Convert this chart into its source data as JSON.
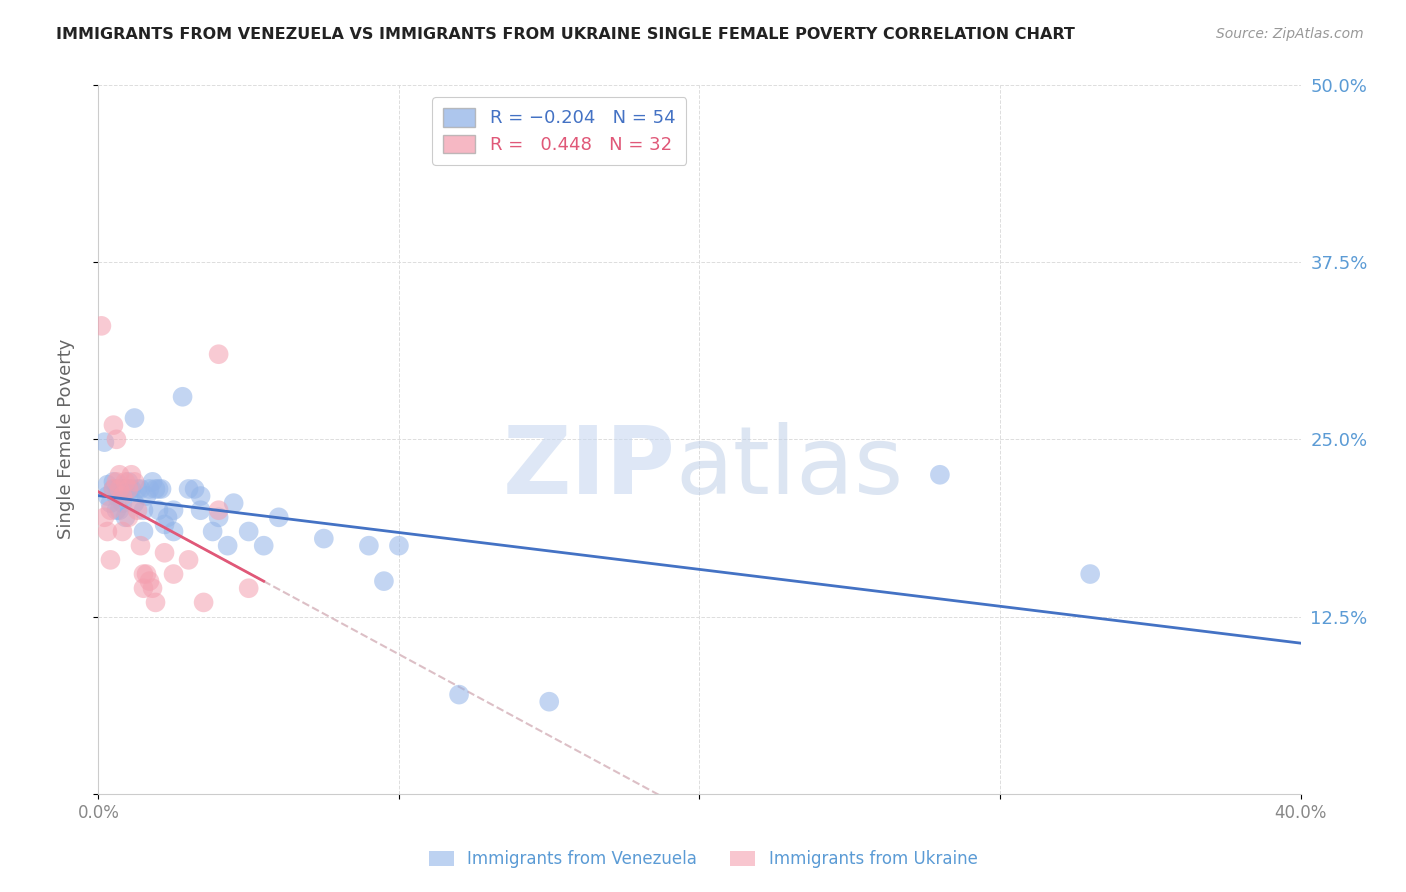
{
  "title": "IMMIGRANTS FROM VENEZUELA VS IMMIGRANTS FROM UKRAINE SINGLE FEMALE POVERTY CORRELATION CHART",
  "source": "Source: ZipAtlas.com",
  "ylabel": "Single Female Poverty",
  "xlim": [
    0.0,
    0.4
  ],
  "ylim": [
    0.0,
    0.5
  ],
  "venezuela_color": "#92b4e8",
  "ukraine_color": "#f4a0b0",
  "ven_line_color": "#4472c4",
  "ukr_line_color": "#e05878",
  "dash_color": "#d4b0b8",
  "watermark_zip_color": "#c8d8f0",
  "watermark_atlas_color": "#c0d0e8",
  "yticks": [
    0.0,
    0.125,
    0.25,
    0.375,
    0.5
  ],
  "ytick_labels": [
    "",
    "12.5%",
    "25.0%",
    "37.5%",
    "50.0%"
  ],
  "xtick_positions": [
    0.0,
    0.4
  ],
  "xtick_labels": [
    "0.0%",
    "40.0%"
  ],
  "venezuela_points": [
    [
      0.002,
      0.248
    ],
    [
      0.003,
      0.218
    ],
    [
      0.003,
      0.21
    ],
    [
      0.004,
      0.205
    ],
    [
      0.005,
      0.215
    ],
    [
      0.005,
      0.22
    ],
    [
      0.006,
      0.21
    ],
    [
      0.006,
      0.2
    ],
    [
      0.007,
      0.215
    ],
    [
      0.007,
      0.2
    ],
    [
      0.008,
      0.215
    ],
    [
      0.008,
      0.205
    ],
    [
      0.009,
      0.215
    ],
    [
      0.009,
      0.195
    ],
    [
      0.01,
      0.215
    ],
    [
      0.01,
      0.22
    ],
    [
      0.011,
      0.215
    ],
    [
      0.012,
      0.265
    ],
    [
      0.012,
      0.205
    ],
    [
      0.013,
      0.215
    ],
    [
      0.014,
      0.215
    ],
    [
      0.015,
      0.2
    ],
    [
      0.015,
      0.185
    ],
    [
      0.016,
      0.21
    ],
    [
      0.017,
      0.215
    ],
    [
      0.018,
      0.22
    ],
    [
      0.019,
      0.215
    ],
    [
      0.02,
      0.2
    ],
    [
      0.02,
      0.215
    ],
    [
      0.021,
      0.215
    ],
    [
      0.022,
      0.19
    ],
    [
      0.023,
      0.195
    ],
    [
      0.025,
      0.185
    ],
    [
      0.025,
      0.2
    ],
    [
      0.028,
      0.28
    ],
    [
      0.03,
      0.215
    ],
    [
      0.032,
      0.215
    ],
    [
      0.034,
      0.21
    ],
    [
      0.034,
      0.2
    ],
    [
      0.038,
      0.185
    ],
    [
      0.04,
      0.195
    ],
    [
      0.043,
      0.175
    ],
    [
      0.045,
      0.205
    ],
    [
      0.05,
      0.185
    ],
    [
      0.055,
      0.175
    ],
    [
      0.06,
      0.195
    ],
    [
      0.075,
      0.18
    ],
    [
      0.09,
      0.175
    ],
    [
      0.095,
      0.15
    ],
    [
      0.1,
      0.175
    ],
    [
      0.12,
      0.07
    ],
    [
      0.15,
      0.065
    ],
    [
      0.28,
      0.225
    ],
    [
      0.33,
      0.155
    ]
  ],
  "ukraine_points": [
    [
      0.001,
      0.33
    ],
    [
      0.002,
      0.195
    ],
    [
      0.003,
      0.185
    ],
    [
      0.004,
      0.2
    ],
    [
      0.004,
      0.165
    ],
    [
      0.005,
      0.26
    ],
    [
      0.005,
      0.215
    ],
    [
      0.006,
      0.25
    ],
    [
      0.006,
      0.22
    ],
    [
      0.007,
      0.225
    ],
    [
      0.007,
      0.215
    ],
    [
      0.008,
      0.21
    ],
    [
      0.008,
      0.185
    ],
    [
      0.009,
      0.22
    ],
    [
      0.01,
      0.215
    ],
    [
      0.01,
      0.195
    ],
    [
      0.011,
      0.225
    ],
    [
      0.012,
      0.22
    ],
    [
      0.013,
      0.2
    ],
    [
      0.014,
      0.175
    ],
    [
      0.015,
      0.155
    ],
    [
      0.015,
      0.145
    ],
    [
      0.016,
      0.155
    ],
    [
      0.017,
      0.15
    ],
    [
      0.018,
      0.145
    ],
    [
      0.019,
      0.135
    ],
    [
      0.022,
      0.17
    ],
    [
      0.025,
      0.155
    ],
    [
      0.03,
      0.165
    ],
    [
      0.035,
      0.135
    ],
    [
      0.04,
      0.2
    ],
    [
      0.04,
      0.31
    ],
    [
      0.05,
      0.145
    ]
  ]
}
